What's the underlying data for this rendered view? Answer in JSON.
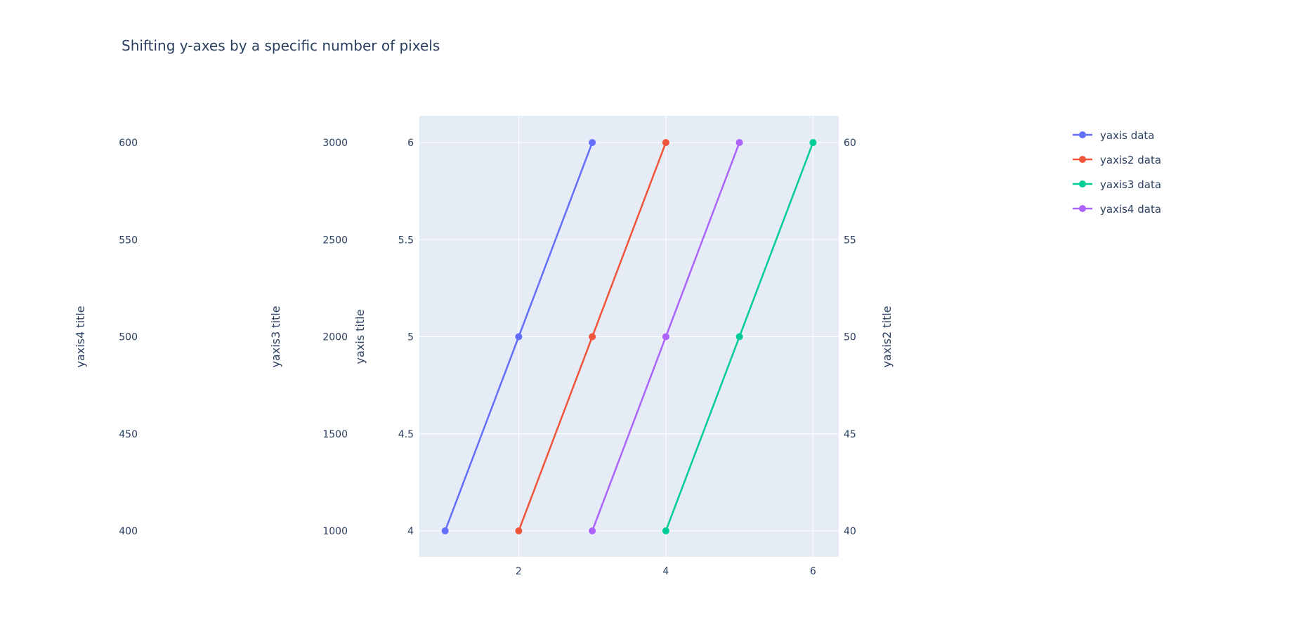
{
  "chart_data": {
    "type": "line",
    "title": "Shifting y-axes by a specific number of pixels",
    "xaxis": {
      "ticks": [
        2,
        4,
        6
      ],
      "range": [
        0.65,
        6.35
      ]
    },
    "grid": true,
    "legend_position": "top-right",
    "axes": [
      {
        "id": "yaxis",
        "title": "yaxis title",
        "ticks": [
          4,
          4.5,
          5,
          5.5,
          6
        ],
        "tick_labels": [
          "4",
          "4.5",
          "5",
          "5.5",
          "6"
        ],
        "range": [
          4,
          6
        ],
        "side": "left"
      },
      {
        "id": "yaxis2",
        "title": "yaxis2 title",
        "ticks": [
          40,
          45,
          50,
          55,
          60
        ],
        "tick_labels": [
          "40",
          "45",
          "50",
          "55",
          "60"
        ],
        "range": [
          40,
          60
        ],
        "side": "right"
      },
      {
        "id": "yaxis3",
        "title": "yaxis3 title",
        "ticks": [
          1000,
          1500,
          2000,
          2500,
          3000
        ],
        "tick_labels": [
          "1000",
          "1500",
          "2000",
          "2500",
          "3000"
        ],
        "range": [
          1000,
          3000
        ],
        "side": "left"
      },
      {
        "id": "yaxis4",
        "title": "yaxis4 title",
        "ticks": [
          400,
          450,
          500,
          550,
          600
        ],
        "tick_labels": [
          "400",
          "450",
          "500",
          "550",
          "600"
        ],
        "range": [
          400,
          600
        ],
        "side": "left"
      }
    ],
    "series": [
      {
        "name": "yaxis data",
        "axis": "yaxis",
        "color": "#636efa",
        "x": [
          1,
          2,
          3
        ],
        "y": [
          4,
          5,
          6
        ]
      },
      {
        "name": "yaxis2 data",
        "axis": "yaxis2",
        "color": "#ef553b",
        "x": [
          2,
          3,
          4
        ],
        "y": [
          40,
          50,
          60
        ]
      },
      {
        "name": "yaxis3 data",
        "axis": "yaxis3",
        "color": "#00cc96",
        "x": [
          4,
          5,
          6
        ],
        "y": [
          1000,
          2000,
          3000
        ]
      },
      {
        "name": "yaxis4 data",
        "axis": "yaxis4",
        "color": "#ab63fa",
        "x": [
          3,
          4,
          5
        ],
        "y": [
          400,
          500,
          600
        ]
      }
    ]
  }
}
